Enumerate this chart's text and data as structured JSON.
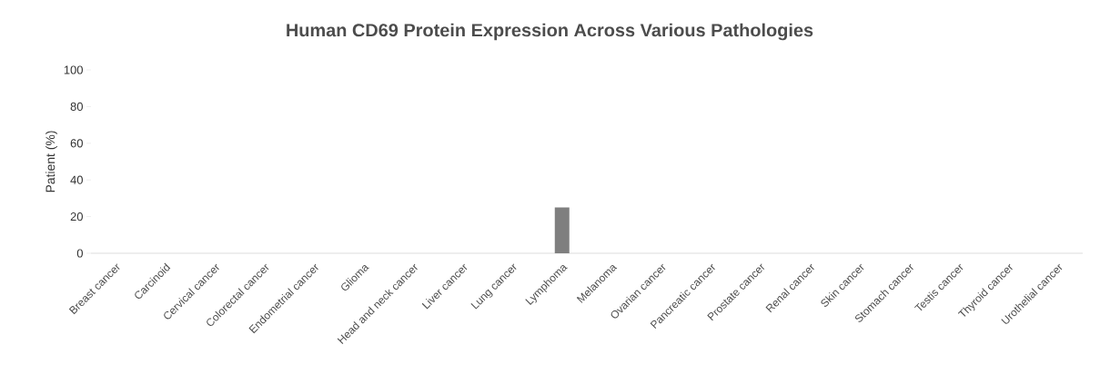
{
  "chart_data": {
    "type": "bar",
    "title": "Human CD69 Protein Expression Across Various Pathologies",
    "ylabel": "Patient (%)",
    "categories": [
      "Breast cancer",
      "Carcinoid",
      "Cervical cancer",
      "Colorectal cancer",
      "Endometrial cancer",
      "Glioma",
      "Head and neck cancer",
      "Liver cancer",
      "Lung cancer",
      "Lymphoma",
      "Melanoma",
      "Ovarian cancer",
      "Pancreatic cancer",
      "Prostate cancer",
      "Renal cancer",
      "Skin cancer",
      "Stomach cancer",
      "Testis cancer",
      "Thyroid cancer",
      "Urothelial cancer"
    ],
    "values": [
      0,
      0,
      0,
      0,
      0,
      0,
      0,
      0,
      0,
      25,
      0,
      0,
      0,
      0,
      0,
      0,
      0,
      0,
      0,
      0
    ],
    "color": "#7f7f7f",
    "ylim": [
      0,
      100
    ],
    "yticks": [
      0,
      20,
      40,
      60,
      80,
      100
    ]
  }
}
